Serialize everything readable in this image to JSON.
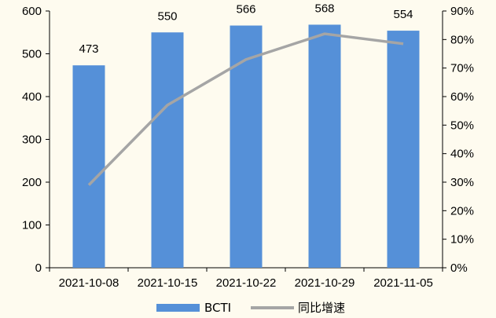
{
  "chart_data": {
    "type": "bar",
    "categories": [
      "2021-10-08",
      "2021-10-15",
      "2021-10-22",
      "2021-10-29",
      "2021-11-05"
    ],
    "series": [
      {
        "name": "BCTI",
        "type": "bar",
        "axis": "left",
        "color": "#5590D8",
        "values": [
          473,
          550,
          566,
          568,
          554
        ]
      },
      {
        "name": "同比增速",
        "type": "line",
        "axis": "right",
        "color": "#A5A5A5",
        "values": [
          0.29,
          0.57,
          0.73,
          0.82,
          0.785
        ]
      }
    ],
    "y_left": {
      "ylim": [
        0,
        600
      ],
      "ticks": [
        "0",
        "100",
        "200",
        "300",
        "400",
        "500",
        "600"
      ]
    },
    "y_right": {
      "ylim": [
        0,
        0.9
      ],
      "ticks": [
        "0%",
        "10%",
        "20%",
        "30%",
        "40%",
        "50%",
        "60%",
        "70%",
        "80%",
        "90%"
      ]
    },
    "data_labels": [
      "473",
      "550",
      "566",
      "568",
      "554"
    ],
    "legend": {
      "position": "bottom",
      "items": [
        "BCTI",
        "同比增速"
      ]
    },
    "grid": false,
    "background": "#FEFBEF"
  }
}
